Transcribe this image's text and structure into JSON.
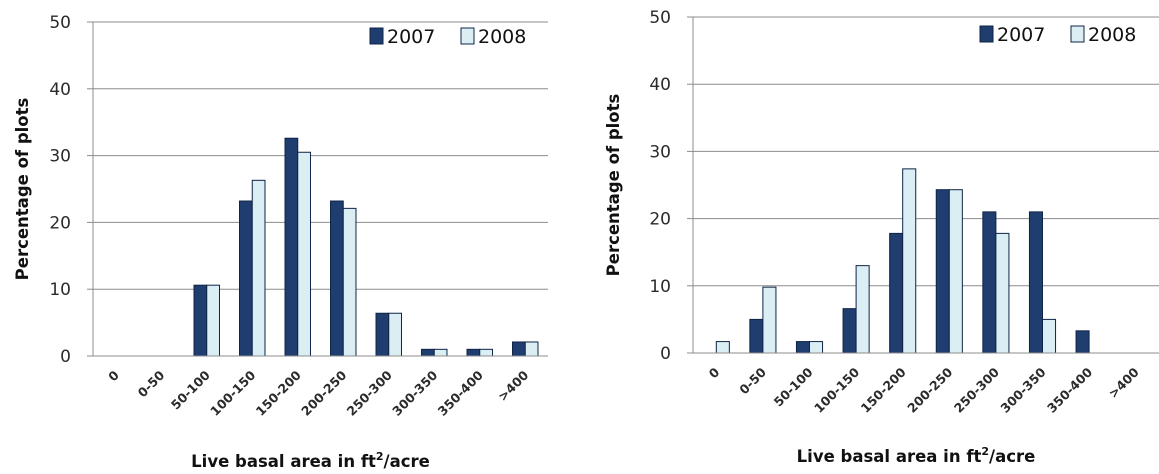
{
  "colors": {
    "series2007": "#1f3d6e",
    "series2008": "#dbeef4",
    "grid": "#8c8c8c",
    "axis": "#8c8c8c"
  },
  "chart_data": [
    {
      "type": "bar",
      "categories": [
        "0",
        "0-50",
        "50-100",
        "100-150",
        "150-200",
        "200-250",
        "250-300",
        "300-350",
        "350-400",
        ">400"
      ],
      "series": [
        {
          "name": "2007",
          "values": [
            0,
            0,
            10.6,
            23.2,
            32.6,
            23.2,
            6.4,
            1.0,
            1.0,
            2.1
          ]
        },
        {
          "name": "2008",
          "values": [
            0,
            0,
            10.6,
            26.3,
            30.5,
            22.1,
            6.4,
            1.0,
            1.0,
            2.1
          ]
        }
      ],
      "ylabel": "Percentage of plots",
      "xlabel_main": "Live basal area in ft",
      "xlabel_sup": "2",
      "xlabel_tail": "/acre",
      "ylim": [
        0,
        50
      ],
      "yticks": [
        0,
        10,
        20,
        30,
        40,
        50
      ],
      "grid": true,
      "legend_position": "top-right"
    },
    {
      "type": "bar",
      "categories": [
        "0",
        "0-50",
        "50-100",
        "100-150",
        "150-200",
        "200-250",
        "250-300",
        "300-350",
        "350-400",
        ">400"
      ],
      "series": [
        {
          "name": "2007",
          "values": [
            0,
            5.0,
            1.7,
            6.6,
            17.8,
            24.3,
            21.0,
            21.0,
            3.3,
            0
          ]
        },
        {
          "name": "2008",
          "values": [
            1.7,
            9.8,
            1.7,
            13.0,
            27.4,
            24.3,
            17.8,
            5.0,
            0,
            0
          ]
        }
      ],
      "ylabel": "Percentage of plots",
      "xlabel_main": "Live basal area in ft",
      "xlabel_sup": "2",
      "xlabel_tail": "/acre",
      "ylim": [
        0,
        50
      ],
      "yticks": [
        0,
        10,
        20,
        30,
        40,
        50
      ],
      "grid": true,
      "legend_position": "top-right"
    }
  ]
}
